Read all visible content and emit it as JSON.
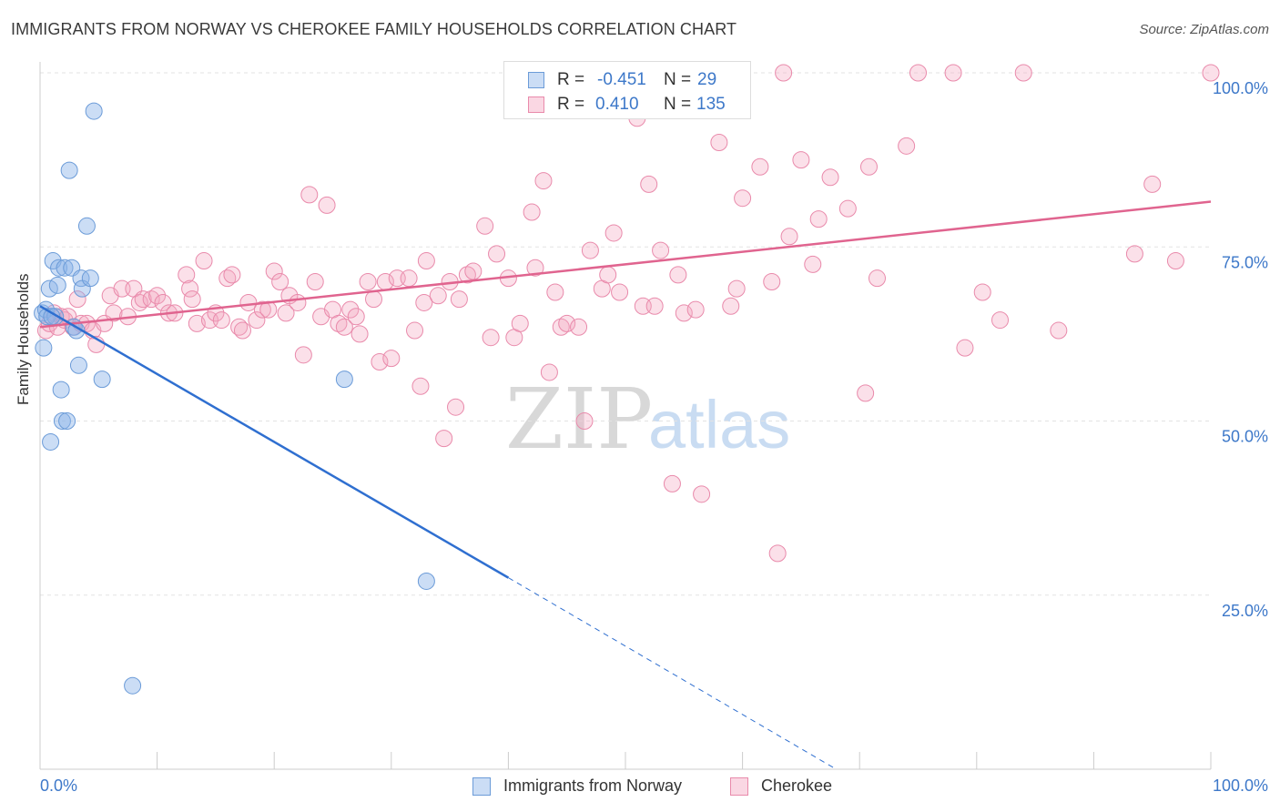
{
  "header": {
    "title": "IMMIGRANTS FROM NORWAY VS CHEROKEE FAMILY HOUSEHOLDS CORRELATION CHART",
    "source": "Source: ZipAtlas.com"
  },
  "watermark": {
    "zip": "ZIP",
    "atlas": "atlas"
  },
  "stats": {
    "rows": [
      {
        "r_label": "R =",
        "r_value": "-0.451",
        "n_label": "N =",
        "n_value": "29",
        "color": "#8cb4e8"
      },
      {
        "r_label": "R =",
        "r_value": "0.410",
        "n_label": "N =",
        "n_value": "135",
        "color": "#f4a7c0"
      }
    ]
  },
  "legend": {
    "items": [
      {
        "label": "Immigrants from Norway",
        "color": "#8cb4e8"
      },
      {
        "label": "Cherokee",
        "color": "#f4a7c0"
      }
    ]
  },
  "colors": {
    "norway_fill": "rgba(140,180,232,0.45)",
    "norway_stroke": "#6b9bd8",
    "norway_line": "#2f6fd0",
    "cherokee_fill": "rgba(244,167,192,0.35)",
    "cherokee_stroke": "#e98aab",
    "cherokee_line": "#e0648f",
    "axis_label": "#3d78c9",
    "grid": "#e3e3e3"
  },
  "chart_data": {
    "type": "scatter",
    "title": "IMMIGRANTS FROM NORWAY VS CHEROKEE FAMILY HOUSEHOLDS CORRELATION CHART",
    "xlabel": "",
    "ylabel": "Family Households",
    "xlim": [
      0,
      100
    ],
    "ylim": [
      0,
      100
    ],
    "x_tick_labels": [
      "0.0%",
      "100.0%"
    ],
    "y_tick_labels": [
      "25.0%",
      "50.0%",
      "75.0%",
      "100.0%"
    ],
    "y_ticks": [
      25,
      50,
      75,
      100
    ],
    "grid": true,
    "legend_position": "bottom",
    "series": [
      {
        "name": "Immigrants from Norway",
        "points": [
          [
            0.2,
            65.5
          ],
          [
            0.3,
            60.5
          ],
          [
            0.5,
            66
          ],
          [
            0.6,
            65
          ],
          [
            0.8,
            69
          ],
          [
            0.9,
            47
          ],
          [
            1.1,
            73
          ],
          [
            1.3,
            65
          ],
          [
            1.5,
            69.5
          ],
          [
            1.6,
            72
          ],
          [
            1.8,
            54.5
          ],
          [
            1.9,
            50
          ],
          [
            2.1,
            72
          ],
          [
            2.3,
            50
          ],
          [
            2.5,
            86
          ],
          [
            2.7,
            72
          ],
          [
            2.9,
            63.5
          ],
          [
            3.1,
            63
          ],
          [
            3.3,
            58
          ],
          [
            3.5,
            70.5
          ],
          [
            3.6,
            69
          ],
          [
            4.0,
            78
          ],
          [
            4.3,
            70.5
          ],
          [
            4.6,
            94.5
          ],
          [
            5.3,
            56
          ],
          [
            7.9,
            12
          ],
          [
            26.0,
            56
          ],
          [
            33.0,
            27
          ],
          [
            1.0,
            65
          ]
        ],
        "trend": {
          "x": [
            0,
            40
          ],
          "y": [
            66.5,
            27.5
          ],
          "dashed_to": [
            68,
            0
          ]
        }
      },
      {
        "name": "Cherokee",
        "points": [
          [
            0.5,
            63
          ],
          [
            0.8,
            64
          ],
          [
            1.2,
            65.5
          ],
          [
            1.5,
            63.5
          ],
          [
            1.8,
            65
          ],
          [
            2.1,
            64.5
          ],
          [
            2.4,
            65
          ],
          [
            2.8,
            63.5
          ],
          [
            3.2,
            67.5
          ],
          [
            3.5,
            64
          ],
          [
            4.0,
            64
          ],
          [
            4.5,
            63
          ],
          [
            4.8,
            61
          ],
          [
            5.5,
            64
          ],
          [
            6.0,
            68
          ],
          [
            6.3,
            65.5
          ],
          [
            7.0,
            69
          ],
          [
            7.5,
            65
          ],
          [
            8.0,
            69
          ],
          [
            8.5,
            67
          ],
          [
            8.8,
            67.5
          ],
          [
            9.5,
            67.5
          ],
          [
            10.0,
            68
          ],
          [
            10.5,
            67
          ],
          [
            11.0,
            65.5
          ],
          [
            11.5,
            65.5
          ],
          [
            12.5,
            71
          ],
          [
            12.8,
            69
          ],
          [
            13.0,
            67.5
          ],
          [
            13.4,
            64
          ],
          [
            14.0,
            73
          ],
          [
            14.5,
            64.5
          ],
          [
            15.0,
            65.5
          ],
          [
            15.5,
            64.5
          ],
          [
            16.0,
            70.5
          ],
          [
            16.4,
            71
          ],
          [
            17.0,
            63.5
          ],
          [
            17.3,
            63
          ],
          [
            17.8,
            67
          ],
          [
            18.5,
            64.5
          ],
          [
            19.0,
            66
          ],
          [
            19.5,
            66
          ],
          [
            20.0,
            71.5
          ],
          [
            20.5,
            70
          ],
          [
            21.0,
            65.5
          ],
          [
            21.3,
            68
          ],
          [
            22.0,
            67
          ],
          [
            22.5,
            59.5
          ],
          [
            23.0,
            82.5
          ],
          [
            23.5,
            70
          ],
          [
            24.0,
            65
          ],
          [
            24.5,
            81
          ],
          [
            25.0,
            66
          ],
          [
            25.5,
            64
          ],
          [
            26.0,
            63.5
          ],
          [
            26.5,
            66
          ],
          [
            27.0,
            65
          ],
          [
            27.3,
            62.5
          ],
          [
            28.0,
            70
          ],
          [
            28.5,
            67.5
          ],
          [
            29.0,
            58.5
          ],
          [
            29.5,
            70
          ],
          [
            30.0,
            59
          ],
          [
            30.5,
            70.5
          ],
          [
            31.5,
            70.5
          ],
          [
            32.0,
            63
          ],
          [
            32.5,
            55
          ],
          [
            32.8,
            67
          ],
          [
            33.0,
            73
          ],
          [
            34.0,
            68
          ],
          [
            34.5,
            47.5
          ],
          [
            35.0,
            70
          ],
          [
            35.5,
            52
          ],
          [
            35.8,
            67.5
          ],
          [
            36.5,
            71
          ],
          [
            37.0,
            71.5
          ],
          [
            38.0,
            78
          ],
          [
            38.5,
            62
          ],
          [
            39.0,
            74
          ],
          [
            40.0,
            70.5
          ],
          [
            40.5,
            62
          ],
          [
            41.0,
            64
          ],
          [
            42.0,
            80
          ],
          [
            42.3,
            72
          ],
          [
            43.0,
            84.5
          ],
          [
            43.5,
            57
          ],
          [
            44.0,
            68.5
          ],
          [
            44.5,
            63.5
          ],
          [
            45.0,
            64
          ],
          [
            46.0,
            63.5
          ],
          [
            46.5,
            50
          ],
          [
            47.0,
            74.5
          ],
          [
            48.0,
            69
          ],
          [
            48.5,
            71
          ],
          [
            49.0,
            77
          ],
          [
            49.5,
            68.5
          ],
          [
            51.0,
            93.5
          ],
          [
            51.5,
            66.5
          ],
          [
            52.0,
            84
          ],
          [
            52.5,
            66.5
          ],
          [
            53.0,
            74.5
          ],
          [
            54.0,
            41
          ],
          [
            54.5,
            71
          ],
          [
            55.0,
            65.5
          ],
          [
            56.0,
            66
          ],
          [
            56.5,
            39.5
          ],
          [
            58.0,
            90
          ],
          [
            59.0,
            66.5
          ],
          [
            59.5,
            69
          ],
          [
            60.0,
            82
          ],
          [
            61.5,
            86.5
          ],
          [
            62.5,
            70
          ],
          [
            63.0,
            31
          ],
          [
            63.5,
            100
          ],
          [
            64.0,
            76.5
          ],
          [
            65.0,
            87.5
          ],
          [
            66.0,
            72.5
          ],
          [
            66.5,
            79
          ],
          [
            67.5,
            85
          ],
          [
            69.0,
            80.5
          ],
          [
            70.5,
            54
          ],
          [
            70.8,
            86.5
          ],
          [
            71.5,
            70.5
          ],
          [
            74.0,
            89.5
          ],
          [
            75.0,
            100
          ],
          [
            78.0,
            100
          ],
          [
            79.0,
            60.5
          ],
          [
            80.5,
            68.5
          ],
          [
            82.0,
            64.5
          ],
          [
            84.0,
            100
          ],
          [
            87.0,
            63
          ],
          [
            93.5,
            74
          ],
          [
            95.0,
            84
          ],
          [
            97.0,
            73
          ],
          [
            100.0,
            100
          ]
        ],
        "trend": {
          "x": [
            0,
            100
          ],
          "y": [
            63.5,
            81.5
          ]
        }
      }
    ]
  }
}
